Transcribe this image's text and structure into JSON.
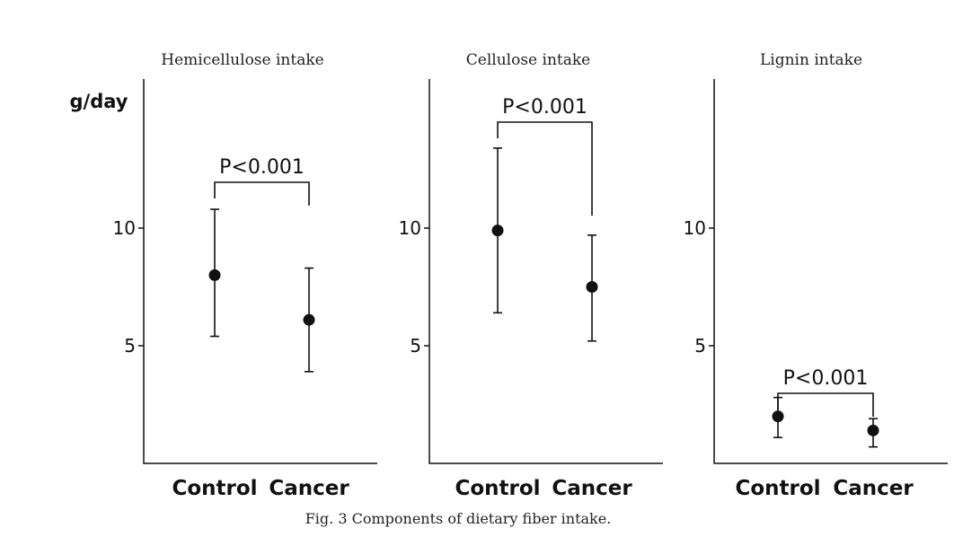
{
  "caption": "Fig. 3  Components of dietary fiber intake.",
  "ylabel": "g/day",
  "chart_data": [
    {
      "type": "scatter",
      "title": "Hemicellulose intake",
      "ylabel": "g/day",
      "categories": [
        "Control",
        "Cancer"
      ],
      "y_ticks": [
        "5",
        "10"
      ],
      "ylim": [
        0,
        16
      ],
      "points": [
        {
          "category": "Control",
          "mean": 8.0,
          "lower": 5.4,
          "upper": 10.8
        },
        {
          "category": "Cancer",
          "mean": 6.1,
          "lower": 3.9,
          "upper": 8.3
        }
      ],
      "significance": {
        "label": "P<0.001",
        "between": [
          "Control",
          "Cancer"
        ]
      }
    },
    {
      "type": "scatter",
      "title": "Cellulose intake",
      "ylabel": "",
      "categories": [
        "Control",
        "Cancer"
      ],
      "y_ticks": [
        "5",
        "10"
      ],
      "ylim": [
        0,
        16
      ],
      "points": [
        {
          "category": "Control",
          "mean": 9.9,
          "lower": 6.4,
          "upper": 13.4
        },
        {
          "category": "Cancer",
          "mean": 7.5,
          "lower": 5.2,
          "upper": 9.7
        }
      ],
      "significance": {
        "label": "P<0.001",
        "between": [
          "Control",
          "Cancer"
        ]
      }
    },
    {
      "type": "scatter",
      "title": "Lignin intake",
      "ylabel": "",
      "categories": [
        "Control",
        "Cancer"
      ],
      "y_ticks": [
        "5",
        "10"
      ],
      "ylim": [
        0,
        16
      ],
      "points": [
        {
          "category": "Control",
          "mean": 2.0,
          "lower": 1.1,
          "upper": 2.8
        },
        {
          "category": "Cancer",
          "mean": 1.4,
          "lower": 0.7,
          "upper": 1.9
        }
      ],
      "significance": {
        "label": "P<0.001",
        "between": [
          "Control",
          "Cancer"
        ]
      }
    }
  ]
}
